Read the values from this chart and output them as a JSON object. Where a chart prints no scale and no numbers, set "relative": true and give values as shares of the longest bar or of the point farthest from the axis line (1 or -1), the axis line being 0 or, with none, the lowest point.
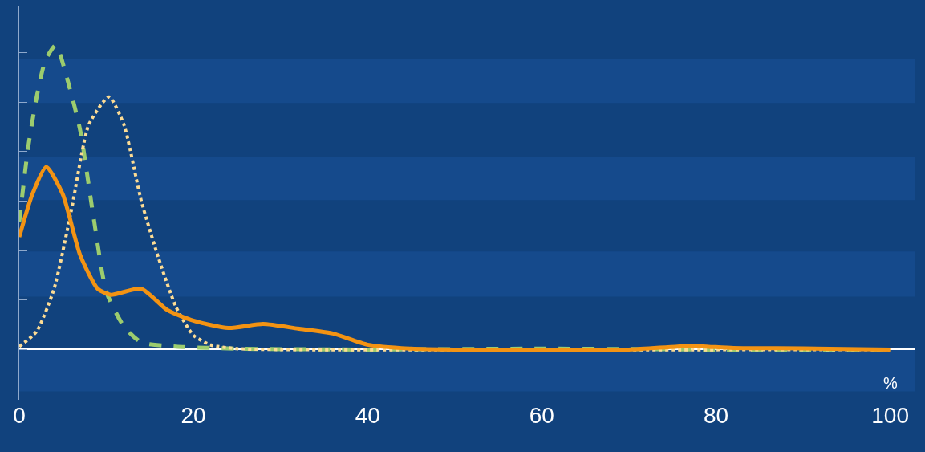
{
  "chart_data": {
    "type": "line",
    "relative": true,
    "xlabel": "%",
    "xlim": [
      0,
      102.8
    ],
    "xticks": [
      0,
      20,
      40,
      60,
      80,
      100
    ],
    "bands": [
      {
        "axis": "y",
        "from": -0.137,
        "to": 0.005,
        "color": "#154a8c"
      },
      {
        "axis": "y",
        "from": 0.174,
        "to": 0.322,
        "color": "#154a8c"
      },
      {
        "axis": "y",
        "from": 0.491,
        "to": 0.633,
        "color": "#154a8c"
      },
      {
        "axis": "y",
        "from": 0.81,
        "to": 0.955,
        "color": "#154a8c"
      }
    ],
    "marker": "none",
    "series": [
      {
        "color": "#9ccc6e",
        "line_style": "dashed",
        "x": [
          0,
          1,
          2,
          3,
          4.2,
          5.5,
          7,
          8.5,
          10,
          12,
          14,
          18,
          25,
          40,
          60,
          80,
          100
        ],
        "values": [
          0.42,
          0.66,
          0.83,
          0.95,
          1,
          0.89,
          0.72,
          0.44,
          0.19,
          0.077,
          0.024,
          0.01,
          0.003,
          0,
          0.003,
          0,
          0
        ]
      },
      {
        "color": "#fddc94",
        "line_style": "dotted",
        "x": [
          0,
          2,
          4,
          6,
          8,
          10.3,
          12,
          14,
          16,
          18,
          20,
          22,
          25,
          30,
          100
        ],
        "values": [
          0.01,
          0.06,
          0.2,
          0.46,
          0.74,
          0.83,
          0.74,
          0.49,
          0.3,
          0.14,
          0.047,
          0.015,
          0.003,
          0,
          0
        ]
      },
      {
        "color": "#f39313",
        "line_style": "solid",
        "x": [
          0,
          1.5,
          3.1,
          5,
          7,
          9,
          10.5,
          14,
          17,
          20,
          24,
          28,
          32,
          36,
          40,
          45,
          50,
          70,
          77,
          82,
          90,
          100
        ],
        "values": [
          0.37,
          0.51,
          0.6,
          0.51,
          0.31,
          0.2,
          0.18,
          0.2,
          0.13,
          0.095,
          0.071,
          0.084,
          0.069,
          0.053,
          0.016,
          0.003,
          0,
          0,
          0.012,
          0.005,
          0.004,
          0
        ]
      }
    ]
  }
}
